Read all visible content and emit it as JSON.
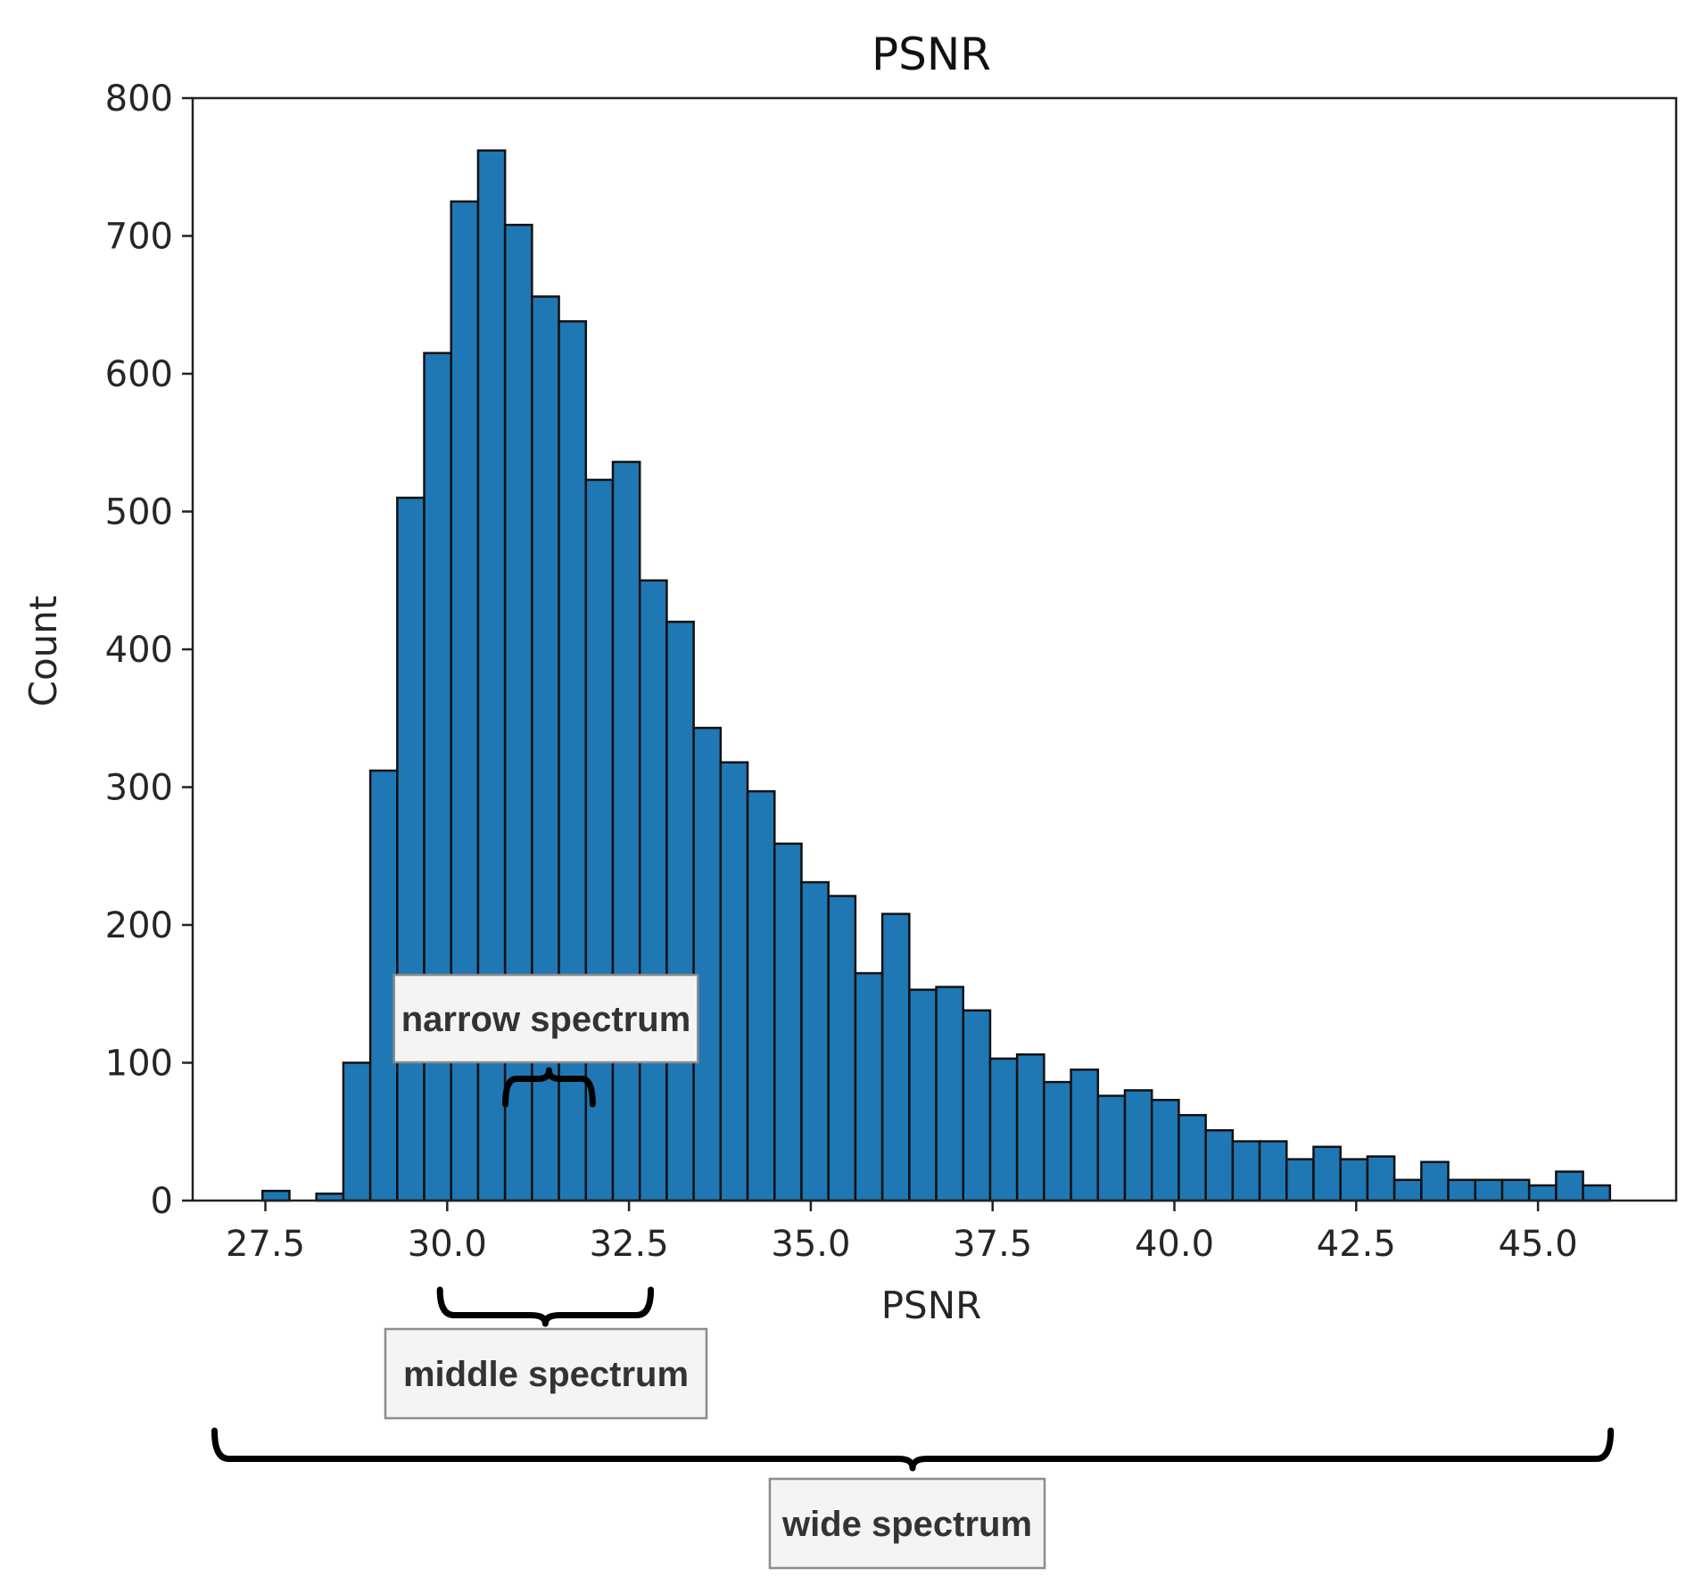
{
  "chart_data": {
    "type": "bar",
    "title": "PSNR",
    "xlabel": "PSNR",
    "ylabel": "Count",
    "xlim": [
      26.5,
      46.9
    ],
    "ylim": [
      0,
      800
    ],
    "xticks": [
      "27.5",
      "30.0",
      "32.5",
      "35.0",
      "37.5",
      "40.0",
      "42.5",
      "45.0"
    ],
    "yticks": [
      "0",
      "100",
      "200",
      "300",
      "400",
      "500",
      "600",
      "700",
      "800"
    ],
    "grid": false,
    "bin_start": 27.46,
    "bin_width": 0.3706,
    "counts": [
      7,
      0,
      5,
      100,
      312,
      510,
      615,
      725,
      762,
      708,
      656,
      638,
      523,
      536,
      450,
      420,
      343,
      318,
      297,
      259,
      231,
      221,
      165,
      208,
      153,
      155,
      138,
      103,
      106,
      86,
      95,
      76,
      80,
      73,
      62,
      51,
      43,
      43,
      30,
      39,
      30,
      32,
      15,
      28,
      15,
      15,
      15,
      11,
      21,
      11
    ],
    "annotations": [
      {
        "label": "narrow spectrum",
        "range": [
          30.8,
          32.0
        ]
      },
      {
        "label": "middle spectrum",
        "range": [
          29.9,
          32.8
        ]
      },
      {
        "label": "wide spectrum",
        "range": [
          26.8,
          46.0
        ]
      }
    ]
  }
}
